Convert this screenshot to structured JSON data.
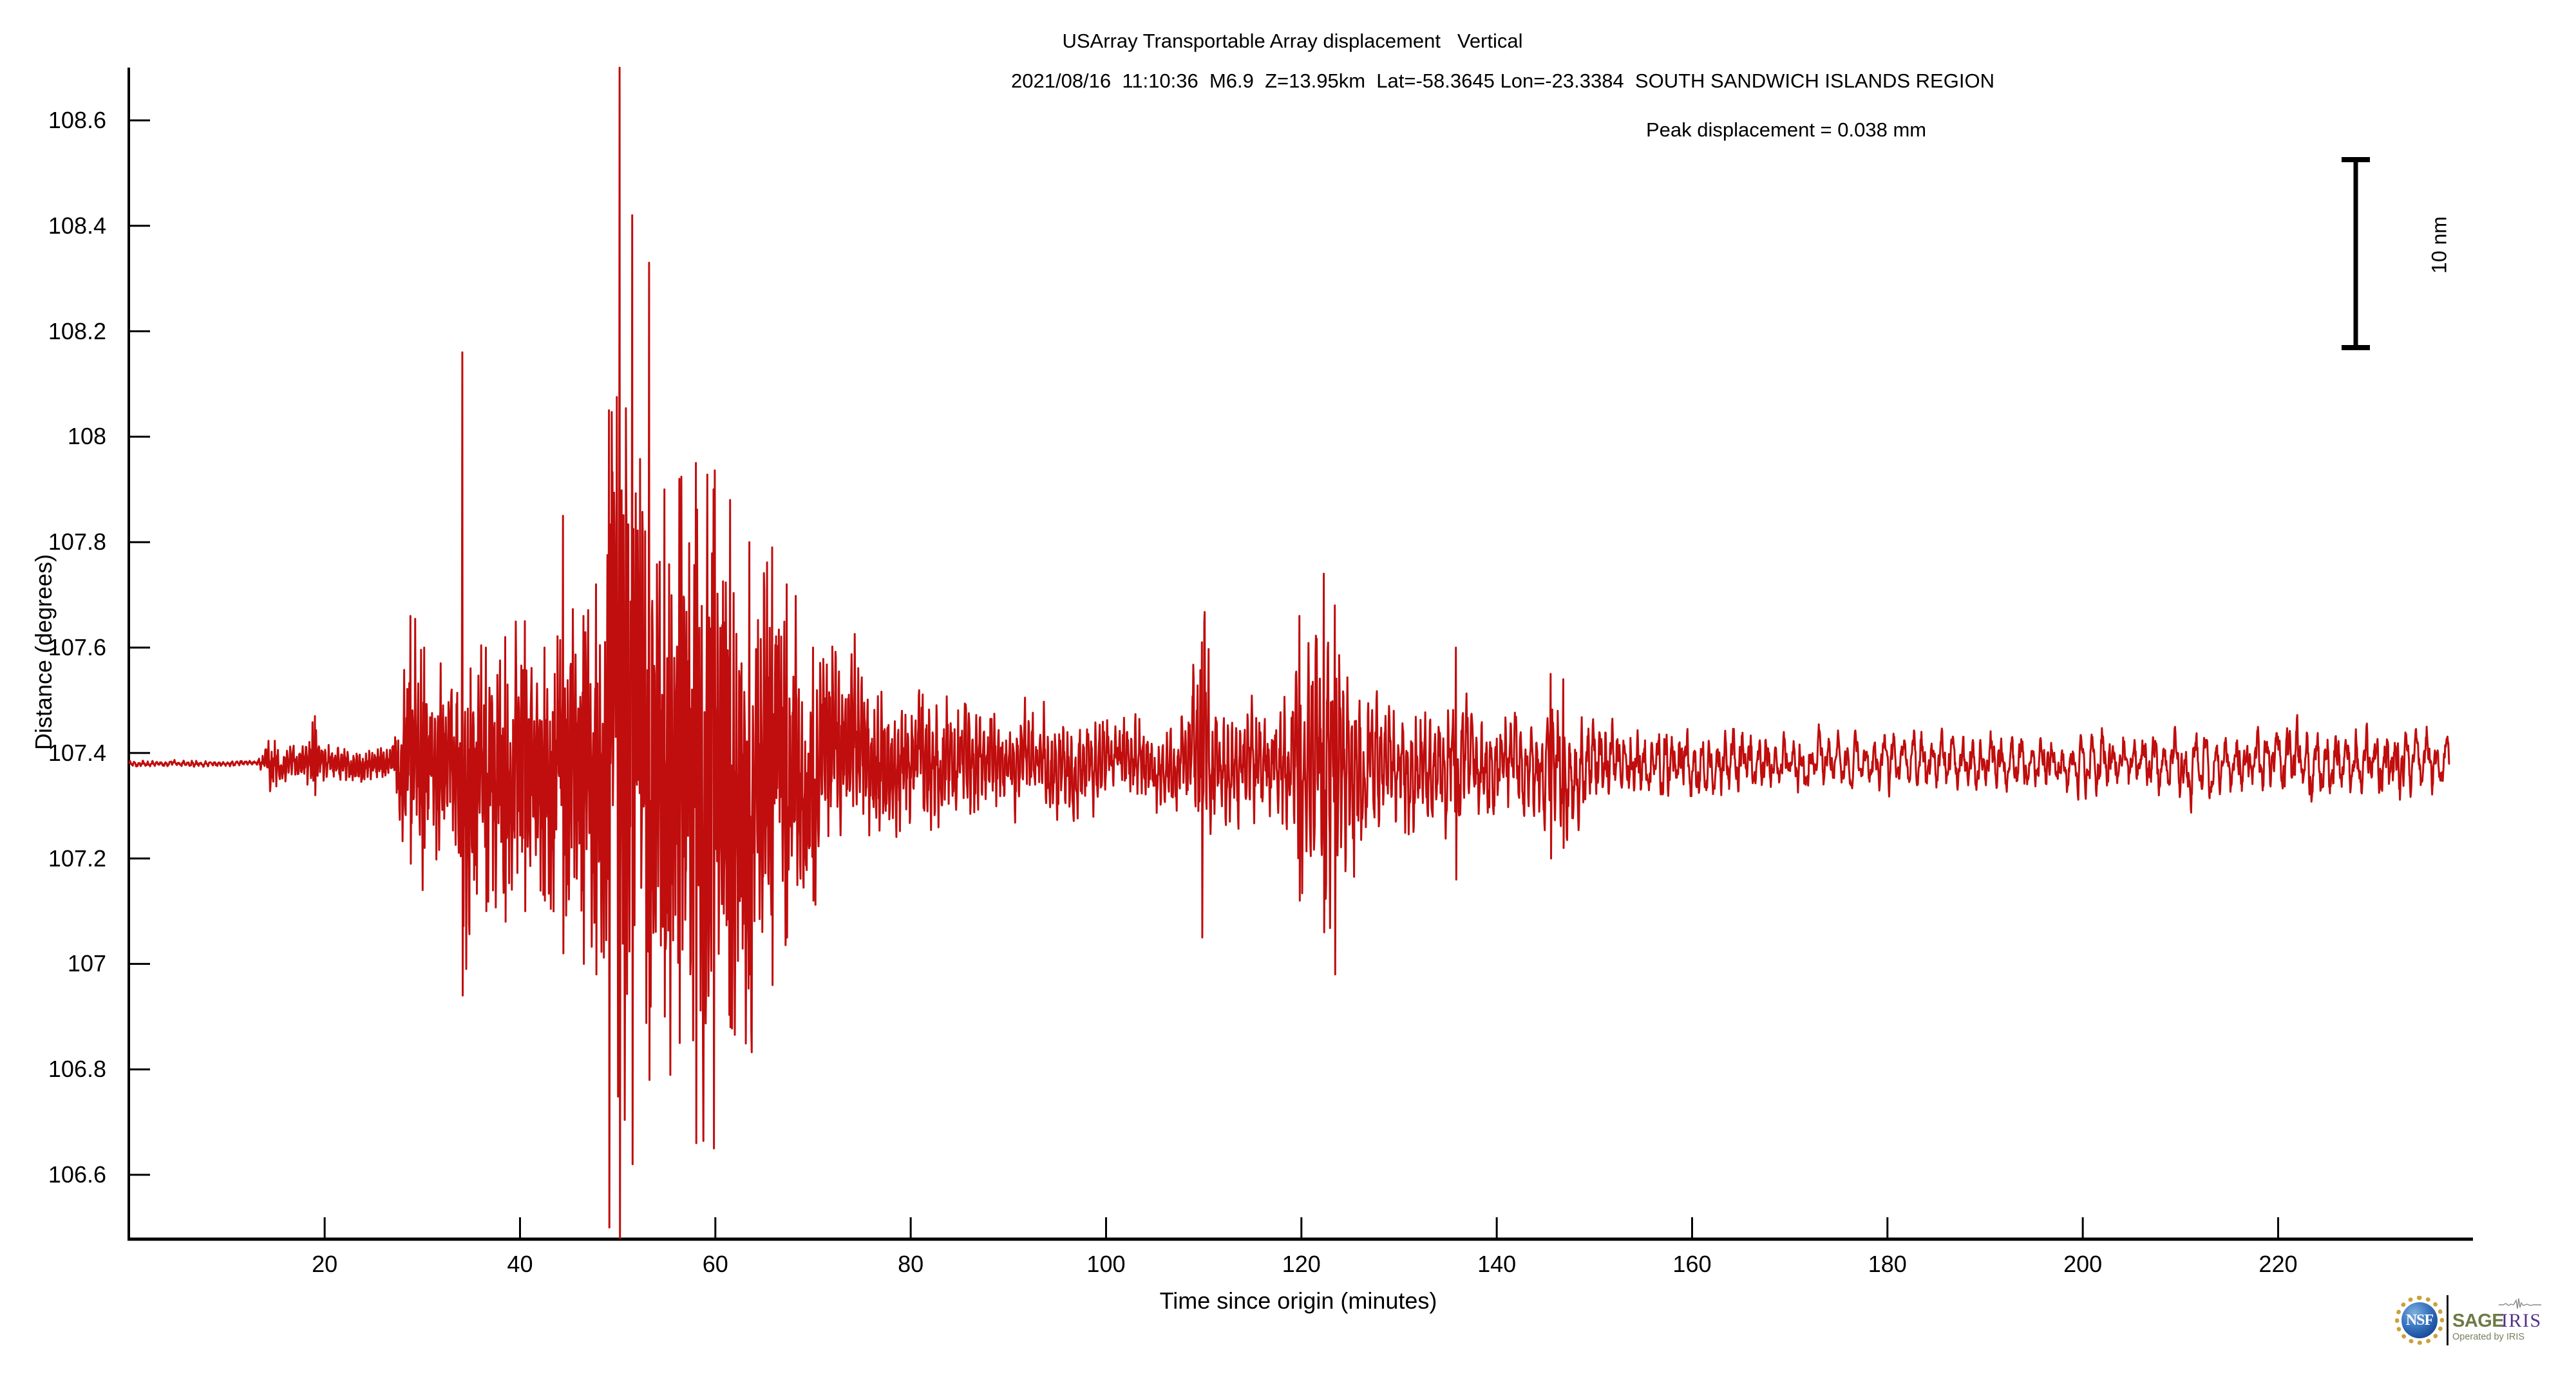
{
  "header": {
    "line1": "USArray Transportable Array displacement   Vertical",
    "line2": "2021/08/16  11:10:36  M6.9  Z=13.95km  Lat=-58.3645 Lon=-23.3384  SOUTH SANDWICH ISLANDS REGION",
    "line3": "Peak displacement = 0.038 mm"
  },
  "axes": {
    "x_label": "Time since origin (minutes)",
    "y_label": "Distance (degrees)"
  },
  "scale_bar": {
    "label": "10 nm"
  },
  "footer_logos": {
    "nsf": "NSF",
    "sage": "SAGE",
    "sage_sub": "Operated by IRIS",
    "iris": "IRIS"
  },
  "colors": {
    "trace": "#c00d0d",
    "axis": "#000000",
    "sage_green": "#6d7a46",
    "sage_sub_green": "#75815a",
    "iris_purple": "#56318e",
    "nsf_gold": "#c9a23a",
    "nsf_blue": "#1c51a0"
  },
  "chart_data": {
    "type": "line",
    "title": "USArray Transportable Array displacement   Vertical",
    "subtitle": "2021/08/16  11:10:36  M6.9  Z=13.95km  Lat=-58.3645 Lon=-23.3384  SOUTH SANDWICH ISLANDS REGION",
    "annotation": "Peak displacement = 0.038 mm",
    "xlabel": "Time since origin (minutes)",
    "ylabel": "Distance (degrees)",
    "xlim": [
      0,
      240
    ],
    "ylim": [
      106.47,
      108.71
    ],
    "x_ticks": [
      20,
      40,
      60,
      80,
      100,
      120,
      140,
      160,
      180,
      200,
      220
    ],
    "y_ticks": [
      106.6,
      106.8,
      107,
      107.2,
      107.4,
      107.6,
      107.8,
      108,
      108.2,
      108.4,
      108.6
    ],
    "y_tick_labels": [
      "106.6",
      "106.8",
      "107",
      "107.2",
      "107.4",
      "107.6",
      "107.8",
      "108",
      "108.2",
      "108.4",
      "108.6"
    ],
    "grid": false,
    "legend": "none",
    "line_color": "#c00d0d",
    "baseline_deg": 107.38,
    "trace_start_min": 0,
    "trace_end_min": 237.5,
    "scale_bar_label": "10 nm",
    "envelope_deg": [
      [
        0,
        0.005
      ],
      [
        13,
        0.005
      ],
      [
        13.8,
        0.02
      ],
      [
        14.5,
        0.055
      ],
      [
        15.5,
        0.03
      ],
      [
        18,
        0.028
      ],
      [
        18.8,
        0.075
      ],
      [
        19.4,
        0.035
      ],
      [
        21,
        0.03
      ],
      [
        24,
        0.03
      ],
      [
        27,
        0.035
      ],
      [
        27.8,
        0.1
      ],
      [
        28.6,
        0.21
      ],
      [
        29.6,
        0.23
      ],
      [
        30.5,
        0.18
      ],
      [
        31.5,
        0.16
      ],
      [
        32.5,
        0.13
      ],
      [
        33.5,
        0.17
      ],
      [
        34.2,
        0.3
      ],
      [
        35,
        0.27
      ],
      [
        36,
        0.2
      ],
      [
        37,
        0.22
      ],
      [
        38,
        0.24
      ],
      [
        39,
        0.2
      ],
      [
        40,
        0.24
      ],
      [
        41,
        0.26
      ],
      [
        42,
        0.2
      ],
      [
        43,
        0.24
      ],
      [
        44,
        0.28
      ],
      [
        44.8,
        0.32
      ],
      [
        45.6,
        0.26
      ],
      [
        46.5,
        0.28
      ],
      [
        47.5,
        0.3
      ],
      [
        48.3,
        0.34
      ],
      [
        49,
        0.42
      ],
      [
        49.8,
        0.6
      ],
      [
        50.6,
        0.68
      ],
      [
        51.4,
        0.58
      ],
      [
        52.2,
        0.5
      ],
      [
        53,
        0.52
      ],
      [
        54,
        0.42
      ],
      [
        55,
        0.44
      ],
      [
        56,
        0.5
      ],
      [
        57,
        0.48
      ],
      [
        58,
        0.55
      ],
      [
        59,
        0.52
      ],
      [
        60,
        0.48
      ],
      [
        61,
        0.45
      ],
      [
        62,
        0.42
      ],
      [
        63,
        0.38
      ],
      [
        64,
        0.35
      ],
      [
        65,
        0.38
      ],
      [
        66,
        0.33
      ],
      [
        67,
        0.32
      ],
      [
        68,
        0.26
      ],
      [
        69,
        0.22
      ],
      [
        70,
        0.2
      ],
      [
        71,
        0.19
      ],
      [
        72,
        0.17
      ],
      [
        73,
        0.16
      ],
      [
        74,
        0.15
      ],
      [
        75,
        0.14
      ],
      [
        76,
        0.14
      ],
      [
        78,
        0.12
      ],
      [
        80,
        0.11
      ],
      [
        82,
        0.11
      ],
      [
        84,
        0.1
      ],
      [
        86,
        0.1
      ],
      [
        88,
        0.09
      ],
      [
        90,
        0.09
      ],
      [
        92,
        0.085
      ],
      [
        94,
        0.085
      ],
      [
        96,
        0.08
      ],
      [
        98,
        0.08
      ],
      [
        100,
        0.075
      ],
      [
        102,
        0.075
      ],
      [
        104,
        0.07
      ],
      [
        106,
        0.07
      ],
      [
        108,
        0.08
      ],
      [
        109,
        0.15
      ],
      [
        109.8,
        0.24
      ],
      [
        110.6,
        0.2
      ],
      [
        111.4,
        0.12
      ],
      [
        112.5,
        0.09
      ],
      [
        114,
        0.09
      ],
      [
        115.5,
        0.1
      ],
      [
        117,
        0.1
      ],
      [
        118.5,
        0.12
      ],
      [
        119.5,
        0.2
      ],
      [
        120.5,
        0.18
      ],
      [
        121.5,
        0.22
      ],
      [
        122.3,
        0.3
      ],
      [
        123.2,
        0.31
      ],
      [
        124,
        0.24
      ],
      [
        125,
        0.19
      ],
      [
        126,
        0.16
      ],
      [
        127,
        0.14
      ],
      [
        128,
        0.13
      ],
      [
        130,
        0.11
      ],
      [
        132,
        0.1
      ],
      [
        134,
        0.1
      ],
      [
        135.5,
        0.12
      ],
      [
        137,
        0.1
      ],
      [
        139,
        0.09
      ],
      [
        141,
        0.08
      ],
      [
        143,
        0.08
      ],
      [
        145,
        0.09
      ],
      [
        145.6,
        0.12
      ],
      [
        148,
        0.1
      ],
      [
        150,
        0.08
      ],
      [
        152,
        0.07
      ],
      [
        154,
        0.065
      ],
      [
        157,
        0.06
      ],
      [
        160,
        0.055
      ],
      [
        164,
        0.055
      ],
      [
        168,
        0.05
      ],
      [
        172,
        0.05
      ],
      [
        176,
        0.045
      ],
      [
        180,
        0.05
      ],
      [
        184,
        0.045
      ],
      [
        188,
        0.05
      ],
      [
        192,
        0.05
      ],
      [
        196,
        0.045
      ],
      [
        200,
        0.05
      ],
      [
        202,
        0.06
      ],
      [
        204,
        0.055
      ],
      [
        206,
        0.05
      ],
      [
        208,
        0.055
      ],
      [
        210,
        0.06
      ],
      [
        212,
        0.055
      ],
      [
        214,
        0.05
      ],
      [
        216,
        0.055
      ],
      [
        218,
        0.05
      ],
      [
        220,
        0.055
      ],
      [
        222,
        0.065
      ],
      [
        224,
        0.07
      ],
      [
        226,
        0.055
      ],
      [
        228,
        0.06
      ],
      [
        230,
        0.065
      ],
      [
        232,
        0.06
      ],
      [
        234,
        0.055
      ],
      [
        236,
        0.06
      ],
      [
        237.5,
        0.055
      ]
    ],
    "oscillation_freq_cpm": [
      [
        0,
        2.2
      ],
      [
        13,
        2.2
      ],
      [
        14,
        3.2
      ],
      [
        20,
        3.0
      ],
      [
        27,
        3.4
      ],
      [
        34,
        3.6
      ],
      [
        45,
        3.8
      ],
      [
        50,
        4.2
      ],
      [
        55,
        4.0
      ],
      [
        62,
        3.6
      ],
      [
        70,
        3.2
      ],
      [
        80,
        2.8
      ],
      [
        90,
        2.6
      ],
      [
        100,
        2.4
      ],
      [
        108,
        2.6
      ],
      [
        115,
        2.4
      ],
      [
        123,
        2.5
      ],
      [
        130,
        2.2
      ],
      [
        140,
        2.0
      ],
      [
        150,
        1.6
      ],
      [
        160,
        1.3
      ],
      [
        170,
        1.1
      ],
      [
        185,
        1.0
      ],
      [
        200,
        0.95
      ],
      [
        215,
        0.95
      ],
      [
        225,
        1.0
      ],
      [
        237.5,
        0.95
      ]
    ],
    "extreme_excursions": [
      [
        19.0,
        107.47,
        107.32
      ],
      [
        28.8,
        107.66,
        107.19
      ],
      [
        30.2,
        107.6,
        107.22
      ],
      [
        34.1,
        108.16,
        106.94
      ],
      [
        36.5,
        107.6,
        107.1
      ],
      [
        38.5,
        107.62,
        107.08
      ],
      [
        40.5,
        107.65,
        107.1
      ],
      [
        42.5,
        107.6,
        107.12
      ],
      [
        44.4,
        107.85,
        107.02
      ],
      [
        46.5,
        107.66,
        107.0
      ],
      [
        47.8,
        107.72,
        106.98
      ],
      [
        49.1,
        108.05,
        106.5
      ],
      [
        50.2,
        108.7,
        106.48
      ],
      [
        51.5,
        108.42,
        106.62
      ],
      [
        53.2,
        108.33,
        106.78
      ],
      [
        54.8,
        107.9,
        106.9
      ],
      [
        56.3,
        107.92,
        106.85
      ],
      [
        58.0,
        107.95,
        106.66
      ],
      [
        59.8,
        107.9,
        106.65
      ],
      [
        61.5,
        107.88,
        106.88
      ],
      [
        63.5,
        107.8,
        106.98
      ],
      [
        65.8,
        107.79,
        106.96
      ],
      [
        67.3,
        107.72,
        107.05
      ],
      [
        70.0,
        107.6,
        107.12
      ],
      [
        109.8,
        107.61,
        107.05
      ],
      [
        119.8,
        107.66,
        107.12
      ],
      [
        122.3,
        107.74,
        107.06
      ],
      [
        123.4,
        107.68,
        106.98
      ],
      [
        135.8,
        107.6,
        107.16
      ],
      [
        145.5,
        107.55,
        107.2
      ],
      [
        146.8,
        107.54,
        107.22
      ]
    ]
  }
}
